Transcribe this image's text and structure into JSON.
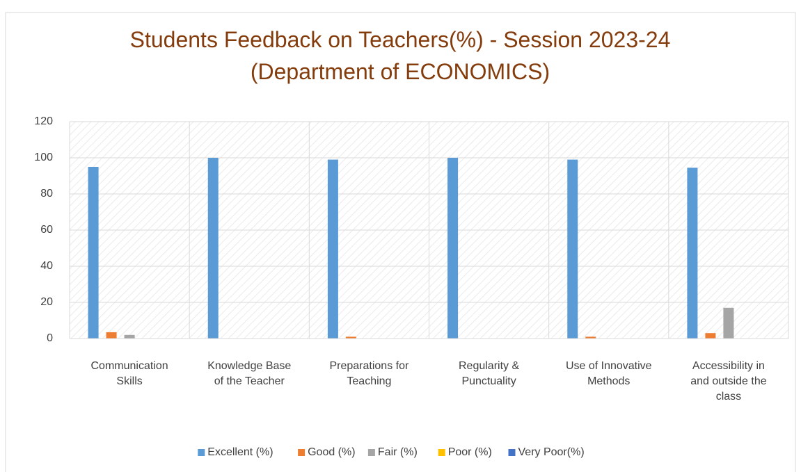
{
  "chart_data": {
    "type": "bar",
    "title": "Students Feedback on Teachers(%) - Session 2023-24\n(Department of ECONOMICS)",
    "categories": [
      "Communication\nSkills",
      "Knowledge Base\nof the Teacher",
      "Preparations for\nTeaching",
      "Regularity &\nPunctuality",
      "Use of Innovative\nMethods",
      "Accessibility in\nand outside the\nclass"
    ],
    "series": [
      {
        "name": "Excellent (%)",
        "color": "#5b9bd5",
        "values": [
          95,
          100,
          99,
          100,
          99,
          94.5
        ]
      },
      {
        "name": "Good (%)",
        "color": "#ed7d31",
        "values": [
          3.5,
          0,
          1,
          0,
          1,
          3
        ]
      },
      {
        "name": "Fair (%)",
        "color": "#a5a5a5",
        "values": [
          2,
          0,
          0,
          0,
          0,
          17
        ]
      },
      {
        "name": "Poor (%)",
        "color": "#ffc000",
        "values": [
          0,
          0,
          0,
          0,
          0,
          0
        ]
      },
      {
        "name": "Very Poor(%)",
        "color": "#4472c4",
        "values": [
          0,
          0,
          0,
          0,
          0,
          0
        ]
      }
    ],
    "ylim": [
      0,
      120
    ],
    "yticks": [
      0,
      20,
      40,
      60,
      80,
      100,
      120
    ],
    "grid": true,
    "legend": "bottom"
  }
}
